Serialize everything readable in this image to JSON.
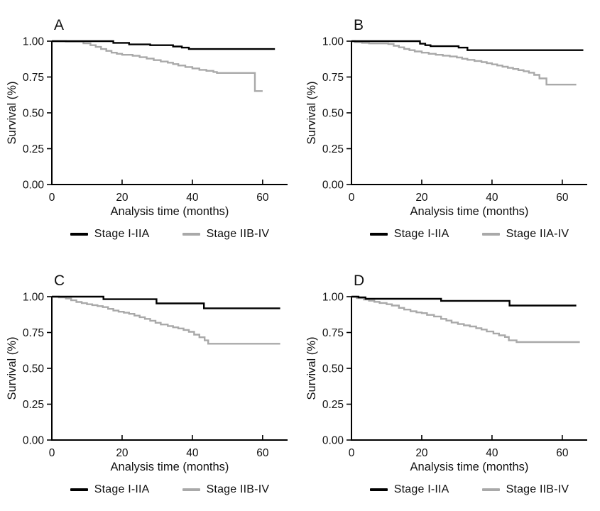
{
  "figure": {
    "background": "#ffffff",
    "text_color": "#111111",
    "axis_color": "#000000",
    "series1_color": "#000000",
    "series2_color": "#a9a9a9"
  },
  "chart_data": [
    {
      "type": "line",
      "curve_style": "step-after",
      "title": "A",
      "xlabel": "Analysis time (months)",
      "ylabel": "Survival (%)",
      "xlim": [
        0,
        66.7
      ],
      "ylim": [
        0,
        1
      ],
      "xticks": [
        0,
        20,
        40,
        60
      ],
      "yticks": [
        1.0,
        0.75,
        0.5,
        0.25,
        0.0
      ],
      "ytick_labels": [
        "1.00",
        "0.75",
        "0.50",
        "0.25",
        "0.00"
      ],
      "grid": false,
      "legend_position": "bottom",
      "series": [
        {
          "name": "Stage I-IIA",
          "color": "#000000",
          "points": [
            [
              0,
              1.0
            ],
            [
              17.5,
              0.988
            ],
            [
              22,
              0.977
            ],
            [
              28,
              0.972
            ],
            [
              34.5,
              0.963
            ],
            [
              37,
              0.955
            ],
            [
              39,
              0.945
            ],
            [
              63.5,
              0.945
            ]
          ]
        },
        {
          "name": "Stage IIB-IV",
          "color": "#a9a9a9",
          "points": [
            [
              0,
              1.0
            ],
            [
              4,
              0.997
            ],
            [
              9,
              0.985
            ],
            [
              11,
              0.972
            ],
            [
              12.5,
              0.96
            ],
            [
              14,
              0.945
            ],
            [
              15.5,
              0.932
            ],
            [
              17,
              0.92
            ],
            [
              18.5,
              0.912
            ],
            [
              20,
              0.905
            ],
            [
              23,
              0.898
            ],
            [
              25,
              0.888
            ],
            [
              27,
              0.878
            ],
            [
              29,
              0.868
            ],
            [
              31,
              0.858
            ],
            [
              33,
              0.85
            ],
            [
              34.5,
              0.84
            ],
            [
              36,
              0.83
            ],
            [
              38,
              0.82
            ],
            [
              40,
              0.81
            ],
            [
              42,
              0.8
            ],
            [
              44,
              0.793
            ],
            [
              46,
              0.785
            ],
            [
              47,
              0.778
            ],
            [
              57.8,
              0.652
            ],
            [
              60,
              0.652
            ]
          ]
        }
      ]
    },
    {
      "type": "line",
      "curve_style": "step-after",
      "title": "B",
      "xlabel": "Analysis time (months)",
      "ylabel": "Survival (%)",
      "xlim": [
        0,
        66.7
      ],
      "ylim": [
        0,
        1
      ],
      "xticks": [
        0,
        20,
        40,
        60
      ],
      "yticks": [
        1.0,
        0.75,
        0.5,
        0.25,
        0.0
      ],
      "ytick_labels": [
        "1.00",
        "0.75",
        "0.50",
        "0.25",
        "0.00"
      ],
      "grid": false,
      "legend_position": "bottom",
      "series": [
        {
          "name": "Stage I-IIA",
          "color": "#000000",
          "points": [
            [
              0,
              1.0
            ],
            [
              19.5,
              0.982
            ],
            [
              21,
              0.972
            ],
            [
              22.5,
              0.965
            ],
            [
              30.5,
              0.955
            ],
            [
              33,
              0.937
            ],
            [
              66,
              0.937
            ]
          ]
        },
        {
          "name": "Stage IIA-IV",
          "color": "#a9a9a9",
          "points": [
            [
              0,
              1.0
            ],
            [
              1,
              0.993
            ],
            [
              3,
              0.988
            ],
            [
              5,
              0.984
            ],
            [
              10.5,
              0.98
            ],
            [
              12,
              0.968
            ],
            [
              13.5,
              0.957
            ],
            [
              15,
              0.946
            ],
            [
              16.5,
              0.937
            ],
            [
              18,
              0.928
            ],
            [
              20,
              0.92
            ],
            [
              22,
              0.912
            ],
            [
              24,
              0.905
            ],
            [
              26,
              0.899
            ],
            [
              28,
              0.893
            ],
            [
              30,
              0.886
            ],
            [
              31.5,
              0.877
            ],
            [
              33,
              0.87
            ],
            [
              35,
              0.862
            ],
            [
              37,
              0.854
            ],
            [
              38.5,
              0.846
            ],
            [
              40,
              0.838
            ],
            [
              41.5,
              0.83
            ],
            [
              43,
              0.822
            ],
            [
              44.5,
              0.814
            ],
            [
              46,
              0.806
            ],
            [
              47.5,
              0.798
            ],
            [
              49,
              0.79
            ],
            [
              50.5,
              0.78
            ],
            [
              52,
              0.765
            ],
            [
              53.5,
              0.74
            ],
            [
              55.5,
              0.697
            ],
            [
              64,
              0.697
            ]
          ]
        }
      ]
    },
    {
      "type": "line",
      "curve_style": "step-after",
      "title": "C",
      "xlabel": "Analysis time (months)",
      "ylabel": "Survival (%)",
      "xlim": [
        0,
        66.7
      ],
      "ylim": [
        0,
        1
      ],
      "xticks": [
        0,
        20,
        40,
        60
      ],
      "yticks": [
        1.0,
        0.75,
        0.5,
        0.25,
        0.0
      ],
      "ytick_labels": [
        "1.00",
        "0.75",
        "0.50",
        "0.25",
        "0.00"
      ],
      "grid": false,
      "legend_position": "bottom",
      "series": [
        {
          "name": "Stage I-IIA",
          "color": "#000000",
          "points": [
            [
              0,
              1.0
            ],
            [
              14.7,
              0.982
            ],
            [
              29.8,
              0.953
            ],
            [
              43.3,
              0.919
            ],
            [
              65,
              0.919
            ]
          ]
        },
        {
          "name": "Stage IIB-IV",
          "color": "#a9a9a9",
          "points": [
            [
              0,
              1.0
            ],
            [
              2,
              0.995
            ],
            [
              4,
              0.987
            ],
            [
              5.5,
              0.975
            ],
            [
              7,
              0.963
            ],
            [
              8.5,
              0.955
            ],
            [
              10,
              0.947
            ],
            [
              11.5,
              0.941
            ],
            [
              13,
              0.934
            ],
            [
              14.5,
              0.927
            ],
            [
              16,
              0.915
            ],
            [
              17.5,
              0.903
            ],
            [
              19,
              0.895
            ],
            [
              20.5,
              0.888
            ],
            [
              22,
              0.88
            ],
            [
              23.5,
              0.868
            ],
            [
              25,
              0.857
            ],
            [
              26.5,
              0.845
            ],
            [
              28,
              0.832
            ],
            [
              29.5,
              0.818
            ],
            [
              31,
              0.806
            ],
            [
              33,
              0.795
            ],
            [
              34.5,
              0.786
            ],
            [
              36,
              0.778
            ],
            [
              37.5,
              0.768
            ],
            [
              39,
              0.755
            ],
            [
              40.5,
              0.735
            ],
            [
              42,
              0.717
            ],
            [
              43.5,
              0.695
            ],
            [
              44.5,
              0.672
            ],
            [
              65,
              0.672
            ]
          ]
        }
      ]
    },
    {
      "type": "line",
      "curve_style": "step-after",
      "title": "D",
      "xlabel": "Analysis time (months)",
      "ylabel": "Survival (%)",
      "xlim": [
        0,
        66.7
      ],
      "ylim": [
        0,
        1
      ],
      "xticks": [
        0,
        20,
        40,
        60
      ],
      "yticks": [
        1.0,
        0.75,
        0.5,
        0.25,
        0.0
      ],
      "ytick_labels": [
        "1.00",
        "0.75",
        "0.50",
        "0.25",
        "0.00"
      ],
      "grid": false,
      "legend_position": "bottom",
      "series": [
        {
          "name": "Stage I-IIA",
          "color": "#000000",
          "points": [
            [
              0,
              1.0
            ],
            [
              2,
              0.995
            ],
            [
              4,
              0.985
            ],
            [
              25.5,
              0.971
            ],
            [
              45,
              0.938
            ],
            [
              64,
              0.938
            ]
          ]
        },
        {
          "name": "Stage IIB-IV",
          "color": "#a9a9a9",
          "points": [
            [
              0,
              1.0
            ],
            [
              1.5,
              0.99
            ],
            [
              3.5,
              0.98
            ],
            [
              5,
              0.972
            ],
            [
              6.5,
              0.964
            ],
            [
              8,
              0.956
            ],
            [
              10,
              0.947
            ],
            [
              11.5,
              0.938
            ],
            [
              13.5,
              0.922
            ],
            [
              15,
              0.91
            ],
            [
              16.8,
              0.898
            ],
            [
              18.5,
              0.89
            ],
            [
              20,
              0.885
            ],
            [
              21.5,
              0.873
            ],
            [
              23.5,
              0.862
            ],
            [
              25.5,
              0.845
            ],
            [
              27,
              0.833
            ],
            [
              28.5,
              0.82
            ],
            [
              30.3,
              0.809
            ],
            [
              32,
              0.8
            ],
            [
              33.7,
              0.792
            ],
            [
              35.5,
              0.78
            ],
            [
              37,
              0.771
            ],
            [
              38.5,
              0.757
            ],
            [
              40.4,
              0.743
            ],
            [
              42,
              0.73
            ],
            [
              43.7,
              0.719
            ],
            [
              44.8,
              0.695
            ],
            [
              47,
              0.683
            ],
            [
              65,
              0.683
            ]
          ]
        }
      ]
    }
  ]
}
